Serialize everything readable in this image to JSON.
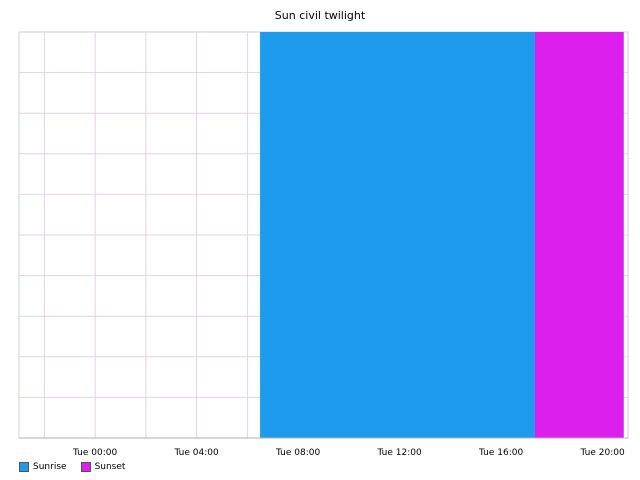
{
  "chart_data": {
    "type": "area",
    "title": "Sun civil twilight",
    "xlabel": "",
    "ylabel": "",
    "x_range": [
      "Mon 21:00",
      "Tue 21:00"
    ],
    "x_ticks": [
      "Tue 00:00",
      "Tue 04:00",
      "Tue 08:00",
      "Tue 12:00",
      "Tue 16:00",
      "Tue 20:00"
    ],
    "grid": true,
    "legend_position": "bottom-left",
    "series": [
      {
        "name": "Sunrise",
        "color": "#1f9bed",
        "start": "Tue 06:30",
        "end": "Tue 17:20"
      },
      {
        "name": "Sunset",
        "color": "#dd1fed",
        "start": "Tue 17:20",
        "end": "Tue 20:50"
      }
    ]
  }
}
